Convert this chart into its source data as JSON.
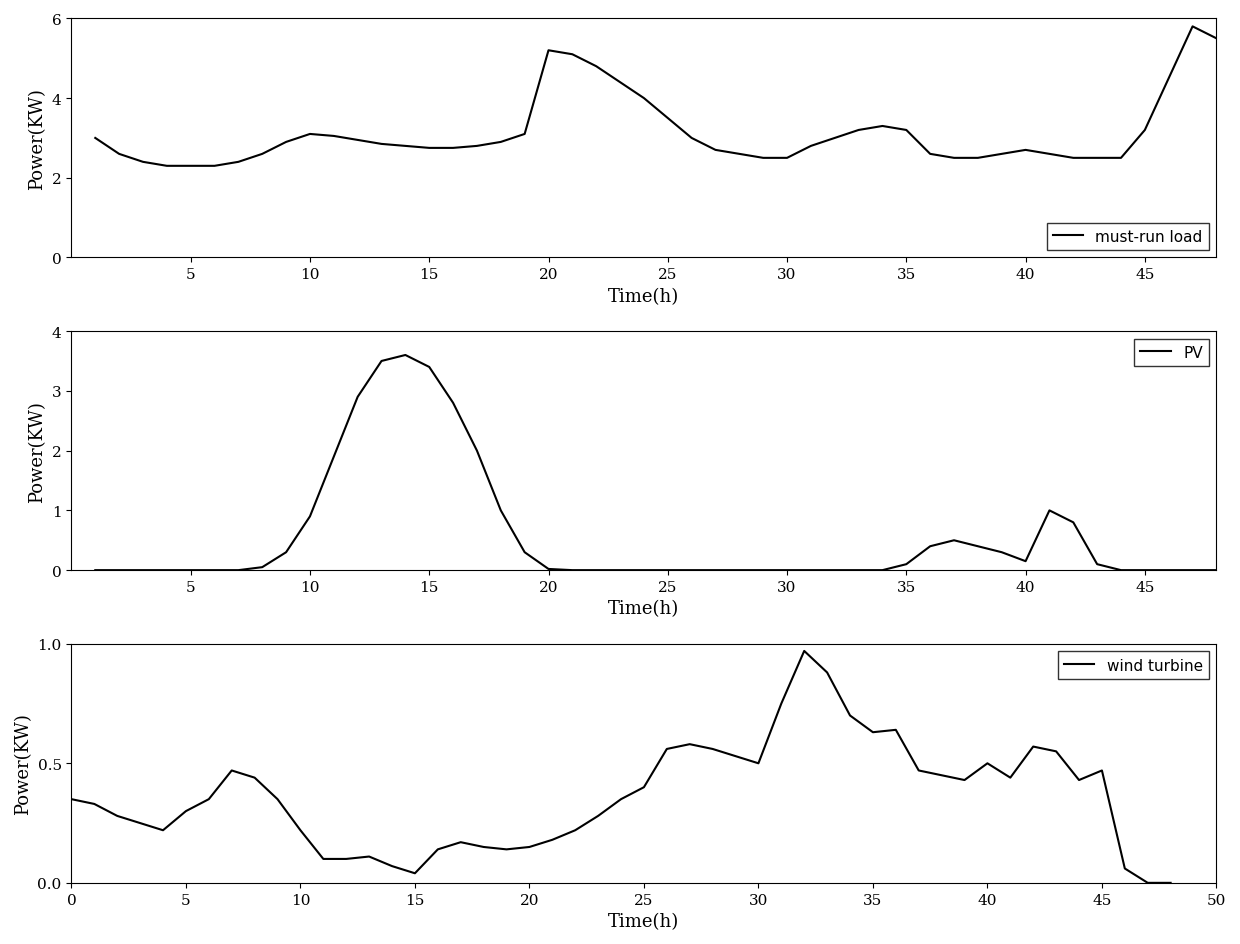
{
  "must_run_load": {
    "x": [
      1,
      2,
      3,
      4,
      5,
      6,
      7,
      8,
      9,
      10,
      11,
      12,
      13,
      14,
      15,
      16,
      17,
      18,
      19,
      20,
      21,
      22,
      23,
      24,
      25,
      26,
      27,
      28,
      29,
      30,
      31,
      32,
      33,
      34,
      35,
      36,
      37,
      38,
      39,
      40,
      41,
      42,
      43,
      44,
      45,
      46,
      47,
      48
    ],
    "y": [
      3.0,
      2.6,
      2.4,
      2.3,
      2.3,
      2.3,
      2.4,
      2.6,
      2.9,
      3.1,
      3.05,
      2.95,
      2.85,
      2.8,
      2.75,
      2.75,
      2.8,
      2.9,
      3.1,
      5.2,
      5.1,
      4.8,
      4.4,
      4.0,
      3.5,
      3.0,
      2.7,
      2.6,
      2.5,
      2.5,
      2.8,
      3.0,
      3.2,
      3.3,
      3.2,
      2.6,
      2.5,
      2.5,
      2.6,
      2.7,
      2.6,
      2.5,
      2.5,
      2.5,
      3.2,
      4.5,
      5.8,
      5.5
    ],
    "label": "must-run load",
    "ylabel": "Power(KW)",
    "xlabel": "Time(h)",
    "xlim": [
      0,
      48
    ],
    "ylim": [
      0,
      6
    ],
    "yticks": [
      0,
      2,
      4,
      6
    ],
    "xticks": [
      5,
      10,
      15,
      20,
      25,
      30,
      35,
      40,
      45
    ],
    "legend_loc": "lower right"
  },
  "pv": {
    "x": [
      1,
      2,
      3,
      4,
      5,
      6,
      7,
      8,
      9,
      10,
      11,
      12,
      13,
      14,
      15,
      16,
      17,
      18,
      19,
      20,
      21,
      22,
      23,
      24,
      25,
      26,
      27,
      28,
      29,
      30,
      31,
      32,
      33,
      34,
      35,
      36,
      37,
      38,
      39,
      40,
      41,
      42,
      43,
      44,
      45,
      46,
      47,
      48
    ],
    "y": [
      0,
      0,
      0,
      0,
      0,
      0,
      0,
      0.05,
      0.3,
      0.9,
      1.9,
      2.9,
      3.5,
      3.6,
      3.4,
      2.8,
      2.0,
      1.0,
      0.3,
      0.02,
      0,
      0,
      0,
      0,
      0,
      0,
      0,
      0,
      0,
      0,
      0,
      0,
      0,
      0,
      0.1,
      0.4,
      0.5,
      0.4,
      0.3,
      0.15,
      1.0,
      0.8,
      0.1,
      0,
      0,
      0,
      0,
      0
    ],
    "label": "PV",
    "ylabel": "Power(KW)",
    "xlabel": "Time(h)",
    "xlim": [
      0,
      48
    ],
    "ylim": [
      0,
      4
    ],
    "yticks": [
      0,
      1,
      2,
      3,
      4
    ],
    "xticks": [
      5,
      10,
      15,
      20,
      25,
      30,
      35,
      40,
      45
    ],
    "legend_loc": "upper right"
  },
  "wind": {
    "x": [
      0,
      1,
      2,
      3,
      4,
      5,
      6,
      7,
      8,
      9,
      10,
      11,
      12,
      13,
      14,
      15,
      16,
      17,
      18,
      19,
      20,
      21,
      22,
      23,
      24,
      25,
      26,
      27,
      28,
      29,
      30,
      31,
      32,
      33,
      34,
      35,
      36,
      37,
      38,
      39,
      40,
      41,
      42,
      43,
      44,
      45,
      46,
      47,
      48
    ],
    "y": [
      0.35,
      0.33,
      0.28,
      0.25,
      0.22,
      0.3,
      0.35,
      0.47,
      0.44,
      0.35,
      0.22,
      0.1,
      0.1,
      0.11,
      0.07,
      0.04,
      0.14,
      0.17,
      0.15,
      0.14,
      0.15,
      0.18,
      0.22,
      0.28,
      0.35,
      0.4,
      0.56,
      0.58,
      0.56,
      0.53,
      0.5,
      0.75,
      0.97,
      0.88,
      0.7,
      0.63,
      0.64,
      0.47,
      0.45,
      0.43,
      0.5,
      0.44,
      0.57,
      0.55,
      0.43,
      0.47,
      0.06,
      0.0,
      0.0
    ],
    "label": "wind turbine",
    "ylabel": "Power(KW)",
    "xlabel": "Time(h)",
    "xlim": [
      0,
      50
    ],
    "ylim": [
      0,
      1.0
    ],
    "yticks": [
      0,
      0.5,
      1.0
    ],
    "xticks": [
      0,
      5,
      10,
      15,
      20,
      25,
      30,
      35,
      40,
      45,
      50
    ],
    "legend_loc": "upper right"
  },
  "line_color": "#000000",
  "line_width": 1.5,
  "bg_color": "#ffffff",
  "legend_fontsize": 11,
  "axis_label_fontsize": 13,
  "tick_fontsize": 11
}
